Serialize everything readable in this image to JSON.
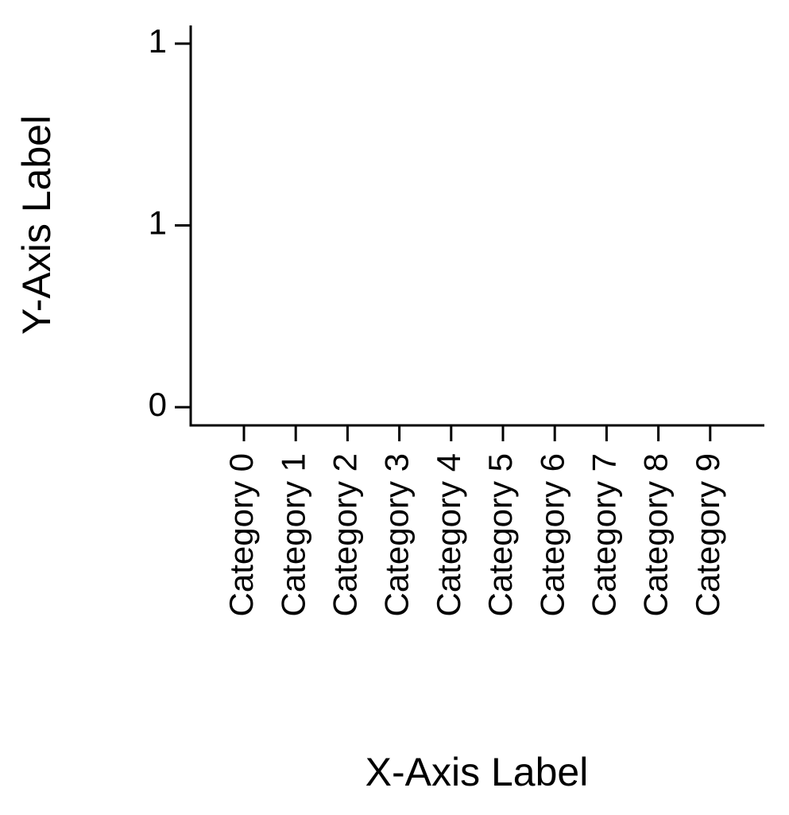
{
  "chart_data": {
    "type": "bar",
    "categories": [
      "Category 0",
      "Category 1",
      "Category 2",
      "Category 3",
      "Category 4",
      "Category 5",
      "Category 6",
      "Category 7",
      "Category 8",
      "Category 9"
    ],
    "xlabel": "X-Axis Label",
    "ylabel": "Y-Axis Label",
    "ylim": [
      -0.05,
      1.05
    ],
    "yticks": [
      0,
      {
        "value": 0.5,
        "label": "1"
      },
      1
    ]
  }
}
